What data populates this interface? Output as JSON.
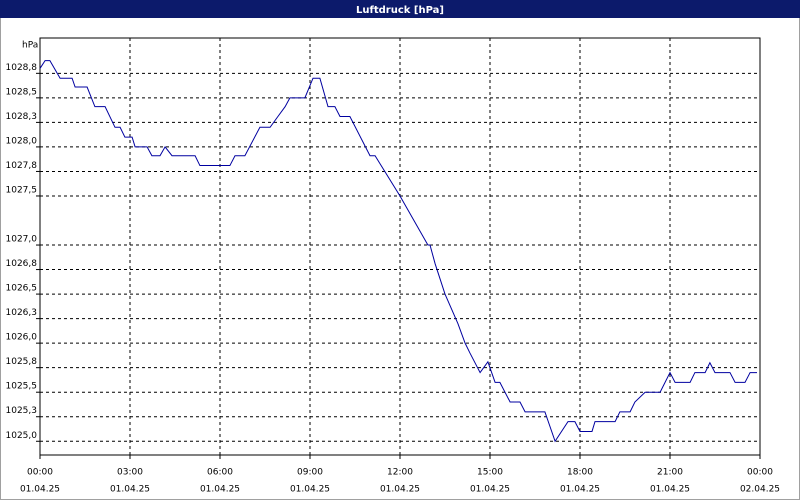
{
  "chart_data": {
    "type": "line",
    "title": "Luftdruck [hPa]",
    "y_label": "hPa",
    "color": "#0000a0",
    "grid": true,
    "xlim": [
      0,
      24
    ],
    "ylim": [
      1024.86,
      1029.11
    ],
    "xticks": [
      {
        "value": 0,
        "label": "00:00",
        "sublabel": "01.04.25"
      },
      {
        "value": 3,
        "label": "03:00",
        "sublabel": "01.04.25"
      },
      {
        "value": 6,
        "label": "06:00",
        "sublabel": "01.04.25"
      },
      {
        "value": 9,
        "label": "09:00",
        "sublabel": "01.04.25"
      },
      {
        "value": 12,
        "label": "12:00",
        "sublabel": "01.04.25"
      },
      {
        "value": 15,
        "label": "15:00",
        "sublabel": "01.04.25"
      },
      {
        "value": 18,
        "label": "18:00",
        "sublabel": "01.04.25"
      },
      {
        "value": 21,
        "label": "21:00",
        "sublabel": "01.04.25"
      },
      {
        "value": 24,
        "label": "00:00",
        "sublabel": "02.04.25"
      }
    ],
    "yticks": [
      {
        "value": 1025,
        "label": "1025,0"
      },
      {
        "value": 1025.25,
        "label": "1025,3"
      },
      {
        "value": 1025.5,
        "label": "1025,5"
      },
      {
        "value": 1025.75,
        "label": "1025,8"
      },
      {
        "value": 1026,
        "label": "1026,0"
      },
      {
        "value": 1026.25,
        "label": "1026,3"
      },
      {
        "value": 1026.5,
        "label": "1026,5"
      },
      {
        "value": 1026.75,
        "label": "1026,8"
      },
      {
        "value": 1027,
        "label": "1027,0"
      },
      {
        "value": 1027.5,
        "label": "1027,5"
      },
      {
        "value": 1027.75,
        "label": "1027,8"
      },
      {
        "value": 1028,
        "label": "1028,0"
      },
      {
        "value": 1028.25,
        "label": "1028,3"
      },
      {
        "value": 1028.5,
        "label": "1028,5"
      },
      {
        "value": 1028.75,
        "label": "1028,8"
      }
    ],
    "x": [
      0,
      0.17,
      0.33,
      0.67,
      1.07,
      1.17,
      1.57,
      1.83,
      2.17,
      2.5,
      2.67,
      2.83,
      3.07,
      3.17,
      3.57,
      3.73,
      4.0,
      4.17,
      4.4,
      5.17,
      5.33,
      6.33,
      6.5,
      6.83,
      7.33,
      7.67,
      7.93,
      8.17,
      8.33,
      8.83,
      9.1,
      9.33,
      9.6,
      9.83,
      10.0,
      10.33,
      11.0,
      11.17,
      12.0,
      12.93,
      13.0,
      13.17,
      13.5,
      13.93,
      14.17,
      14.33,
      14.67,
      14.93,
      15.17,
      15.33,
      15.67,
      16.0,
      16.17,
      16.83,
      17.17,
      17.6,
      17.83,
      18.0,
      18.4,
      18.5,
      19.17,
      19.33,
      19.67,
      19.83,
      20.17,
      20.67,
      21.0,
      21.17,
      21.67,
      21.83,
      22.17,
      22.33,
      22.5,
      23.0,
      23.17,
      23.5,
      23.67,
      23.9
    ],
    "series": [
      {
        "name": "Luftdruck",
        "color": "#0000a0",
        "values": [
          1028.8,
          1028.88,
          1028.88,
          1028.7,
          1028.7,
          1028.61,
          1028.61,
          1028.41,
          1028.41,
          1028.2,
          1028.2,
          1028.1,
          1028.1,
          1028.0,
          1028.0,
          1027.91,
          1027.91,
          1028.0,
          1027.91,
          1027.91,
          1027.81,
          1027.81,
          1027.91,
          1027.91,
          1028.2,
          1028.2,
          1028.31,
          1028.41,
          1028.5,
          1028.5,
          1028.7,
          1028.7,
          1028.41,
          1028.41,
          1028.31,
          1028.31,
          1027.91,
          1027.91,
          1027.5,
          1027.0,
          1027.0,
          1026.81,
          1026.5,
          1026.2,
          1026.0,
          1025.9,
          1025.7,
          1025.81,
          1025.6,
          1025.6,
          1025.4,
          1025.4,
          1025.3,
          1025.3,
          1025.0,
          1025.2,
          1025.2,
          1025.1,
          1025.1,
          1025.2,
          1025.2,
          1025.3,
          1025.3,
          1025.4,
          1025.5,
          1025.5,
          1025.7,
          1025.6,
          1025.6,
          1025.7,
          1025.7,
          1025.8,
          1025.7,
          1025.7,
          1025.6,
          1025.6,
          1025.7,
          1025.7
        ]
      }
    ]
  }
}
